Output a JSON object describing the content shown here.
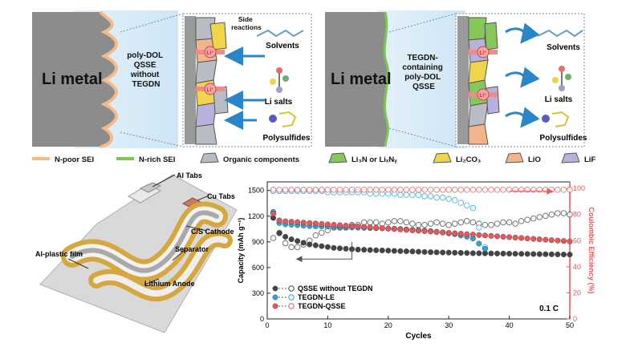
{
  "panels": {
    "left_top": {
      "metal_label": "Li metal",
      "electrolyte_label": [
        "poly-DOL",
        "QSSE",
        "without",
        "TEGDN"
      ],
      "reaction_label": [
        "Side",
        "reactions"
      ],
      "species": [
        "Solvents",
        "Li salts",
        "Polysulfides"
      ],
      "ion_label": "Li⁺"
    },
    "right_top": {
      "metal_label": "Li metal",
      "electrolyte_label": [
        "TEGDN-",
        "containing",
        "poly-DOL",
        "QSSE"
      ],
      "species": [
        "Solvents",
        "Li salts",
        "Polysulfides"
      ],
      "ion_label": "Li⁺"
    }
  },
  "legend": [
    {
      "label": "N-poor SEI",
      "color": "#f5b98a",
      "kind": "line"
    },
    {
      "label": "N-rich SEI",
      "color": "#7cc652",
      "kind": "line"
    },
    {
      "label": "Organic components",
      "color": "#b9bcc2",
      "kind": "shape"
    },
    {
      "label": "Li₃N or LiₓNᵧ",
      "color": "#86c75a",
      "kind": "shape"
    },
    {
      "label": "Li₂CO₃",
      "color": "#f0d54a",
      "kind": "shape"
    },
    {
      "label": "LiO",
      "color": "#f2b48a",
      "kind": "shape"
    },
    {
      "label": "LiF",
      "color": "#b7b2dc",
      "kind": "shape"
    }
  ],
  "battery": {
    "labels": [
      "Al Tabs",
      "Cu Tabs",
      "C/S Cathode",
      "Separator",
      "Al-plastic film",
      "Lithium Anode"
    ]
  },
  "chart_data": {
    "type": "scatter",
    "xlabel": "Cycles",
    "ylabel": "Capacity (mAh g⁻¹)",
    "y2label": "Coulombic Efficiency (%)",
    "xlim": [
      0,
      50
    ],
    "ylim": [
      0,
      1600
    ],
    "y2lim": [
      0,
      105
    ],
    "xticks": [
      0,
      10,
      20,
      30,
      40,
      50
    ],
    "yticks": [
      0,
      300,
      600,
      900,
      1200,
      1500
    ],
    "y2ticks": [
      0,
      20,
      40,
      60,
      80,
      100
    ],
    "annotation": "0.1 C",
    "legend_position": "bottom-left",
    "series": [
      {
        "name": "QSSE without TEGDN",
        "color": "#444444",
        "capacity": [
          1180,
          1000,
          960,
          930,
          910,
          890,
          870,
          860,
          850,
          840,
          830,
          825,
          820,
          815,
          810,
          808,
          805,
          802,
          800,
          798,
          795,
          792,
          790,
          788,
          785,
          782,
          780,
          778,
          776,
          775,
          773,
          772,
          770,
          768,
          767,
          766,
          765,
          764,
          763,
          762,
          761,
          760,
          759,
          758,
          757,
          756,
          755,
          754,
          753,
          752
        ],
        "efficiency": [
          62,
          66,
          58,
          55,
          55,
          57,
          60,
          64,
          66,
          68,
          70,
          70,
          70,
          72,
          72,
          74,
          74,
          74,
          73,
          74,
          75,
          75,
          74,
          73,
          72,
          72,
          73,
          74,
          73,
          72,
          73,
          74,
          75,
          74,
          73,
          72,
          72,
          73,
          74,
          74,
          73,
          75,
          76,
          77,
          78,
          79,
          80,
          81,
          81,
          80
        ]
      },
      {
        "name": "TEGDN-LE",
        "color": "#2aa6d9",
        "capacity": [
          1250,
          1120,
          1105,
          1100,
          1095,
          1090,
          1085,
          1082,
          1080,
          1078,
          1075,
          1072,
          1070,
          1068,
          1066,
          1064,
          1062,
          1060,
          1058,
          1055,
          1052,
          1050,
          1045,
          1040,
          1035,
          1030,
          1025,
          1018,
          1010,
          1000,
          990,
          975,
          960,
          940,
          880,
          820
        ],
        "efficiency": [
          98,
          98,
          98,
          98,
          98,
          98,
          98,
          98,
          98,
          97,
          97,
          97,
          97,
          97,
          97,
          97,
          96,
          96,
          96,
          96,
          96,
          95,
          95,
          95,
          95,
          94,
          94,
          93,
          93,
          92,
          91,
          89,
          87,
          85,
          70,
          55
        ]
      },
      {
        "name": "TEGDN-QSSE",
        "color": "#e8555a",
        "capacity": [
          1230,
          1150,
          1140,
          1135,
          1130,
          1125,
          1120,
          1115,
          1110,
          1105,
          1100,
          1095,
          1090,
          1085,
          1080,
          1075,
          1070,
          1065,
          1060,
          1055,
          1050,
          1045,
          1040,
          1035,
          1030,
          1025,
          1020,
          1015,
          1010,
          1005,
          1000,
          995,
          990,
          985,
          980,
          975,
          970,
          965,
          960,
          955,
          950,
          945,
          940,
          935,
          930,
          925,
          920,
          915,
          910,
          905
        ],
        "efficiency": [
          99,
          99,
          99,
          99,
          99,
          99,
          99,
          99,
          99,
          99,
          99,
          99,
          99,
          99,
          99,
          99,
          99,
          99,
          99,
          99,
          99,
          99,
          99,
          99,
          99,
          99,
          99,
          99,
          99,
          99,
          99,
          99,
          99,
          99,
          99,
          99,
          99,
          99,
          99,
          99,
          99,
          99,
          99,
          99,
          99,
          99,
          99,
          99,
          99,
          99
        ]
      }
    ]
  }
}
